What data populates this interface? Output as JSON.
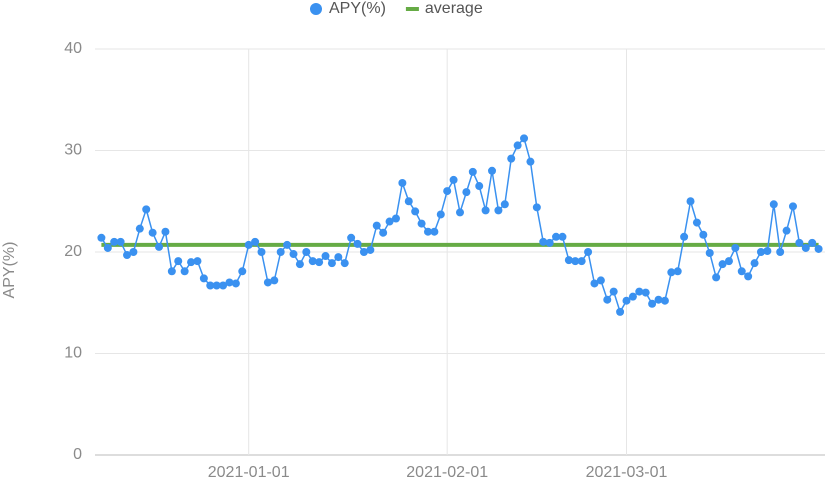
{
  "chart_data": {
    "type": "line",
    "y_label": "APY(%)",
    "x": [
      "2020-12-09",
      "2020-12-10",
      "2020-12-11",
      "2020-12-12",
      "2020-12-13",
      "2020-12-14",
      "2020-12-15",
      "2020-12-16",
      "2020-12-17",
      "2020-12-18",
      "2020-12-19",
      "2020-12-20",
      "2020-12-21",
      "2020-12-22",
      "2020-12-23",
      "2020-12-24",
      "2020-12-25",
      "2020-12-26",
      "2020-12-27",
      "2020-12-28",
      "2020-12-29",
      "2020-12-30",
      "2020-12-31",
      "2021-01-01",
      "2021-01-02",
      "2021-01-03",
      "2021-01-04",
      "2021-01-05",
      "2021-01-06",
      "2021-01-07",
      "2021-01-08",
      "2021-01-09",
      "2021-01-10",
      "2021-01-11",
      "2021-01-12",
      "2021-01-13",
      "2021-01-14",
      "2021-01-15",
      "2021-01-16",
      "2021-01-17",
      "2021-01-18",
      "2021-01-19",
      "2021-01-20",
      "2021-01-21",
      "2021-01-22",
      "2021-01-23",
      "2021-01-24",
      "2021-01-25",
      "2021-01-26",
      "2021-01-27",
      "2021-01-28",
      "2021-01-29",
      "2021-01-30",
      "2021-01-31",
      "2021-02-01",
      "2021-02-02",
      "2021-02-03",
      "2021-02-04",
      "2021-02-05",
      "2021-02-06",
      "2021-02-07",
      "2021-02-08",
      "2021-02-09",
      "2021-02-10",
      "2021-02-11",
      "2021-02-12",
      "2021-02-13",
      "2021-02-14",
      "2021-02-15",
      "2021-02-16",
      "2021-02-17",
      "2021-02-18",
      "2021-02-19",
      "2021-02-20",
      "2021-02-21",
      "2021-02-22",
      "2021-02-23",
      "2021-02-24",
      "2021-02-25",
      "2021-02-26",
      "2021-02-27",
      "2021-02-28",
      "2021-03-01",
      "2021-03-02",
      "2021-03-03",
      "2021-03-04",
      "2021-03-05",
      "2021-03-06",
      "2021-03-07",
      "2021-03-08",
      "2021-03-09",
      "2021-03-10",
      "2021-03-11",
      "2021-03-12",
      "2021-03-13",
      "2021-03-14",
      "2021-03-15",
      "2021-03-16",
      "2021-03-17",
      "2021-03-18",
      "2021-03-19",
      "2021-03-20",
      "2021-03-21",
      "2021-03-22",
      "2021-03-23",
      "2021-03-24",
      "2021-03-25",
      "2021-03-26",
      "2021-03-27",
      "2021-03-28",
      "2021-03-29",
      "2021-03-30",
      "2021-03-31"
    ],
    "series": [
      {
        "name": "APY(%)",
        "color": "#3a91f0",
        "markers": true,
        "values": [
          21.4,
          20.4,
          21.0,
          21.0,
          19.7,
          20.0,
          22.3,
          24.2,
          21.9,
          20.5,
          22.0,
          18.1,
          19.1,
          18.1,
          19.0,
          19.1,
          17.4,
          16.7,
          16.7,
          16.7,
          17.0,
          16.9,
          18.1,
          20.7,
          21.0,
          20.0,
          17.0,
          17.2,
          20.0,
          20.7,
          19.8,
          18.8,
          20.0,
          19.1,
          19.0,
          19.6,
          18.9,
          19.5,
          18.9,
          21.4,
          20.8,
          20.0,
          20.2,
          22.6,
          21.9,
          23.0,
          23.3,
          26.8,
          25.0,
          24.0,
          22.8,
          22.0,
          22.0,
          23.7,
          26.0,
          27.1,
          23.9,
          25.9,
          27.9,
          26.5,
          24.1,
          28.0,
          24.1,
          24.7,
          29.2,
          30.5,
          31.2,
          28.9,
          24.4,
          21.0,
          20.9,
          21.5,
          21.5,
          19.2,
          19.1,
          19.1,
          20.0,
          16.9,
          17.2,
          15.3,
          16.1,
          14.1,
          15.2,
          15.6,
          16.1,
          16.0,
          14.9,
          15.3,
          15.2,
          18.0,
          18.1,
          21.5,
          25.0,
          22.9,
          21.7,
          19.9,
          17.5,
          18.8,
          19.1,
          20.4,
          18.1,
          17.6,
          18.9,
          20.0,
          20.1,
          24.7,
          20.0,
          22.1,
          24.5,
          20.9,
          20.4,
          20.9,
          20.3
        ]
      },
      {
        "name": "average",
        "color": "#66ab45",
        "markers": false,
        "values": [
          20.7,
          20.7,
          20.7,
          20.7,
          20.7,
          20.7,
          20.7,
          20.7,
          20.7,
          20.7,
          20.7,
          20.7,
          20.7,
          20.7,
          20.7,
          20.7,
          20.7,
          20.7,
          20.7,
          20.7,
          20.7,
          20.7,
          20.7,
          20.7,
          20.7,
          20.7,
          20.7,
          20.7,
          20.7,
          20.7,
          20.7,
          20.7,
          20.7,
          20.7,
          20.7,
          20.7,
          20.7,
          20.7,
          20.7,
          20.7,
          20.7,
          20.7,
          20.7,
          20.7,
          20.7,
          20.7,
          20.7,
          20.7,
          20.7,
          20.7,
          20.7,
          20.7,
          20.7,
          20.7,
          20.7,
          20.7,
          20.7,
          20.7,
          20.7,
          20.7,
          20.7,
          20.7,
          20.7,
          20.7,
          20.7,
          20.7,
          20.7,
          20.7,
          20.7,
          20.7,
          20.7,
          20.7,
          20.7,
          20.7,
          20.7,
          20.7,
          20.7,
          20.7,
          20.7,
          20.7,
          20.7,
          20.7,
          20.7,
          20.7,
          20.7,
          20.7,
          20.7,
          20.7,
          20.7,
          20.7,
          20.7,
          20.7,
          20.7,
          20.7,
          20.7,
          20.7,
          20.7,
          20.7,
          20.7,
          20.7,
          20.7,
          20.7,
          20.7,
          20.7,
          20.7,
          20.7,
          20.7,
          20.7,
          20.7,
          20.7,
          20.7,
          20.7,
          20.7
        ]
      }
    ],
    "xlim": [
      "2020-12-08",
      "2021-04-01"
    ],
    "xticks": [
      "2021-01-01",
      "2021-02-01",
      "2021-03-01"
    ],
    "ylim": [
      0,
      40
    ],
    "yticks": [
      0,
      10,
      20,
      30,
      40
    ],
    "grid": true
  }
}
